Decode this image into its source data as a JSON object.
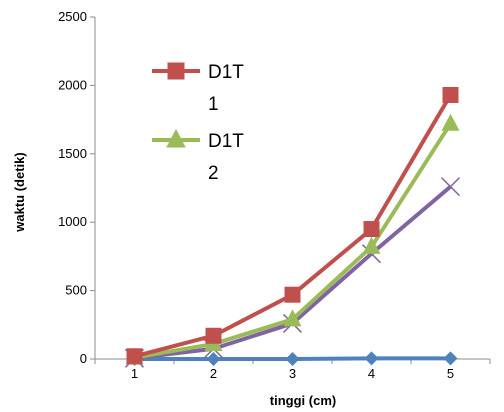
{
  "chart_data": {
    "type": "line",
    "xlabel": "tinggi (cm)",
    "ylabel": "waktu (detik)",
    "x": [
      1,
      2,
      3,
      4,
      5
    ],
    "ylim": [
      0,
      2500
    ],
    "yticks": [
      0,
      500,
      1000,
      1500,
      2000,
      2500
    ],
    "grid": false,
    "legend_position": "top-left",
    "series": [
      {
        "name": "D1T 1",
        "marker": "square",
        "color": "#C0504D",
        "values": [
          20,
          170,
          470,
          950,
          1930
        ]
      },
      {
        "name": "D1T 2",
        "marker": "triangle",
        "color": "#9BBB59",
        "values": [
          10,
          110,
          290,
          820,
          1720
        ]
      },
      {
        "name": "",
        "marker": "x",
        "color": "#8064A2",
        "values": [
          5,
          75,
          260,
          770,
          1260
        ]
      },
      {
        "name": "",
        "marker": "diamond",
        "color": "#4F81BD",
        "values": [
          0,
          0,
          0,
          5,
          5
        ]
      }
    ],
    "legend": [
      {
        "line1": "D1T",
        "line2": "1"
      },
      {
        "line1": "D1T",
        "line2": "2"
      }
    ]
  }
}
